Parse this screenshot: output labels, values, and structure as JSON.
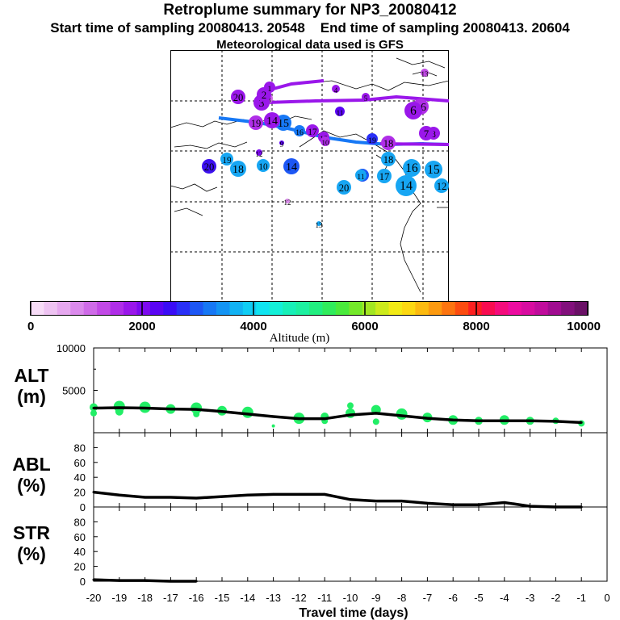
{
  "header": {
    "title": "Retroplume summary for NP3_20080412",
    "start": "Start time of sampling 20080413. 20548",
    "end": "End time of sampling 20080413. 20604",
    "met": "Meteorological data used is GFS"
  },
  "colorbar": {
    "ticks": [
      "0",
      "2000",
      "4000",
      "6000",
      "8000",
      "10000"
    ],
    "label": "Altitude (m)",
    "colors": [
      "#f7dcf7",
      "#eec3f2",
      "#e6a8ef",
      "#db8aec",
      "#cf6be8",
      "#c24ae6",
      "#b02ee8",
      "#9a17ea",
      "#7d0aef",
      "#5a05f3",
      "#3a0cf6",
      "#2a30f7",
      "#1d57f5",
      "#1778f5",
      "#1494f3",
      "#12b2f3",
      "#10cdf4",
      "#10e4f0",
      "#14f0d8",
      "#18f0b8",
      "#1df0a0",
      "#22ee80",
      "#30ec5c",
      "#4aea3c",
      "#74e82a",
      "#a2e622",
      "#ccea1c",
      "#f2ea16",
      "#fcd812",
      "#fcba10",
      "#fc9a10",
      "#fc7410",
      "#fc4c10",
      "#fc2020",
      "#f80c50",
      "#f40c7c",
      "#ec0ca0",
      "#d80ca0",
      "#c00c9c",
      "#a00c90",
      "#82107c",
      "#6a1066"
    ]
  },
  "map": {
    "markers": [
      {
        "label": "20",
        "color": "#3c10ee"
      },
      {
        "label": "20",
        "color": "#17a6f3"
      },
      {
        "label": "20",
        "color": "#9a17ea"
      },
      {
        "label": "19",
        "color": "#17a6f3"
      },
      {
        "label": "19",
        "color": "#b02ee8"
      },
      {
        "label": "19",
        "color": "#2a30f7"
      },
      {
        "label": "18",
        "color": "#17a6f3"
      },
      {
        "label": "18",
        "color": "#17a6f3"
      },
      {
        "label": "18",
        "color": "#b02ee8"
      },
      {
        "label": "17",
        "color": "#17a6f3"
      },
      {
        "label": "17",
        "color": "#1d57f5"
      },
      {
        "label": "17",
        "color": "#9a17ea"
      },
      {
        "label": "16",
        "color": "#17a6f3"
      },
      {
        "label": "16",
        "color": "#1778f5"
      },
      {
        "label": "16",
        "color": "#b02ee8"
      },
      {
        "label": "15",
        "color": "#17a6f3"
      },
      {
        "label": "15",
        "color": "#1778f5"
      },
      {
        "label": "15",
        "color": "#9a17ea"
      },
      {
        "label": "14",
        "color": "#1d57f5"
      },
      {
        "label": "14",
        "color": "#17a6f3"
      },
      {
        "label": "14",
        "color": "#9a17ea"
      },
      {
        "label": "13",
        "color": "#17a6f3"
      },
      {
        "label": "13",
        "color": "#c24ae6"
      },
      {
        "label": "13",
        "color": "#cf6be8"
      },
      {
        "label": "12",
        "color": "#17a6f3"
      },
      {
        "label": "12",
        "color": "#db8aec"
      },
      {
        "label": "12",
        "color": "#7d0aef"
      },
      {
        "label": "11",
        "color": "#17a6f3"
      },
      {
        "label": "11",
        "color": "#5a05f3"
      },
      {
        "label": "10",
        "color": "#17a6f3"
      },
      {
        "label": "10",
        "color": "#b02ee8"
      },
      {
        "label": "9",
        "color": "#5a05f3"
      },
      {
        "label": "8",
        "color": "#9a17ea"
      },
      {
        "label": "7",
        "color": "#9a17ea"
      },
      {
        "label": "6",
        "color": "#9a17ea"
      },
      {
        "label": "5",
        "color": "#9a17ea"
      },
      {
        "label": "4",
        "color": "#9a17ea"
      },
      {
        "label": "3",
        "color": "#9a17ea"
      },
      {
        "label": "2",
        "color": "#9a17ea"
      },
      {
        "label": "1",
        "color": "#9a17ea"
      }
    ]
  },
  "panels": {
    "alt": {
      "label1": "ALT",
      "label2": "(m)"
    },
    "abl": {
      "label1": "ABL",
      "label2": "(%)"
    },
    "str": {
      "label1": "STR",
      "label2": "(%)"
    }
  },
  "chart_data": [
    {
      "type": "line",
      "title": "ALT (m)",
      "xlabel": "Travel time (days)",
      "ylabel": "ALT (m)",
      "xlim": [
        -20,
        0
      ],
      "ylim": [
        0,
        10000
      ],
      "x_ticks": [
        "-20",
        "-19",
        "-18",
        "-17",
        "-16",
        "-15",
        "-14",
        "-13",
        "-12",
        "-11",
        "-10",
        "-9",
        "-8",
        "-7",
        "-6",
        "-5",
        "-4",
        "-3",
        "-2",
        "-1",
        "0"
      ],
      "y_ticks": [
        "10000",
        "5000"
      ],
      "x": [
        -20,
        -19,
        -18,
        -17,
        -16,
        -15,
        -14,
        -13,
        -12,
        -11,
        -10,
        -9,
        -8,
        -7,
        -6,
        -5,
        -4,
        -3,
        -2,
        -1
      ],
      "values": [
        2900,
        2950,
        2900,
        2800,
        2750,
        2500,
        2200,
        1900,
        1650,
        1650,
        2100,
        2300,
        2000,
        1700,
        1500,
        1400,
        1400,
        1400,
        1350,
        1200
      ],
      "scatter": {
        "x": [
          -20,
          -20,
          -19,
          -19,
          -18,
          -17,
          -16,
          -16,
          -15,
          -14,
          -13,
          -12,
          -11,
          -11,
          -10,
          -10,
          -9,
          -9,
          -8,
          -7,
          -6,
          -5,
          -4,
          -3,
          -2,
          -1
        ],
        "y": [
          3000,
          2300,
          3100,
          2500,
          3000,
          2800,
          2900,
          2200,
          2600,
          2400,
          800,
          1700,
          1900,
          1400,
          3200,
          2300,
          2700,
          1300,
          2200,
          1800,
          1500,
          1400,
          1500,
          1400,
          1400,
          1100
        ],
        "size": [
          5,
          4,
          7,
          5,
          7,
          6,
          7,
          4,
          6,
          7,
          2,
          7,
          5,
          4,
          4,
          6,
          6,
          4,
          7,
          6,
          6,
          5,
          6,
          5,
          4,
          4
        ],
        "color": "#22ee66"
      }
    },
    {
      "type": "line",
      "title": "ABL (%)",
      "ylabel": "ABL (%)",
      "xlim": [
        -20,
        0
      ],
      "ylim": [
        0,
        100
      ],
      "y_ticks": [
        "80",
        "60",
        "40",
        "20",
        "0"
      ],
      "x": [
        -20,
        -19,
        -18,
        -17,
        -16,
        -15,
        -14,
        -13,
        -12,
        -11,
        -10,
        -9,
        -8,
        -7,
        -6,
        -5,
        -4,
        -3,
        -2,
        -1
      ],
      "values": [
        20,
        16,
        13,
        13,
        12,
        14,
        16,
        17,
        17,
        17,
        10,
        8,
        8,
        5,
        3,
        3,
        6,
        1,
        0,
        0
      ]
    },
    {
      "type": "line",
      "title": "STR (%)",
      "ylabel": "STR (%)",
      "xlim": [
        -20,
        0
      ],
      "ylim": [
        0,
        100
      ],
      "y_ticks": [
        "80",
        "60",
        "40",
        "20",
        "0"
      ],
      "x": [
        -20,
        -19,
        -18,
        -17,
        -16
      ],
      "values": [
        2,
        1,
        1,
        0,
        0
      ]
    }
  ]
}
